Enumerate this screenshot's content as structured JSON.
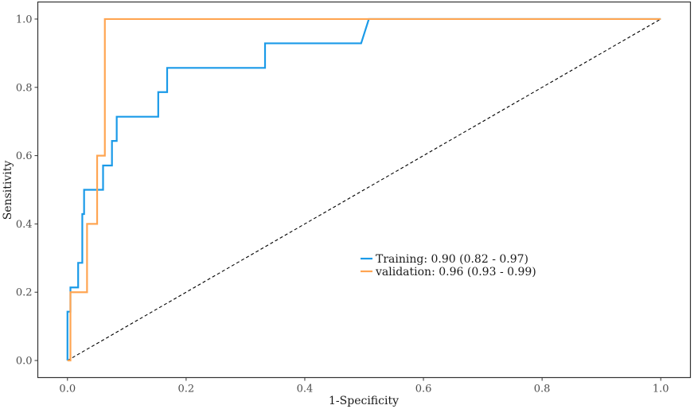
{
  "chart_data": {
    "type": "line",
    "title": "",
    "xlabel": "1-Specificity",
    "ylabel": "Sensitivity",
    "xlim": [
      -0.05,
      1.05
    ],
    "ylim": [
      -0.05,
      1.05
    ],
    "xticks": [
      0.0,
      0.2,
      0.4,
      0.6,
      0.8,
      1.0
    ],
    "xtick_labels": [
      "0.0",
      "0.2",
      "0.4",
      "0.6",
      "0.8",
      "1.0"
    ],
    "yticks": [
      0.0,
      0.2,
      0.4,
      0.6,
      0.8,
      1.0
    ],
    "ytick_labels": [
      "0.0",
      "0.2",
      "0.4",
      "0.6",
      "0.8",
      "1.0"
    ],
    "grid": false,
    "legend_position": "right-center",
    "reference_line": {
      "x": [
        0,
        1
      ],
      "y": [
        0,
        1
      ],
      "style": "dashed",
      "color": "#000000"
    },
    "series": [
      {
        "name": "Training: 0.90 (0.82 - 0.97)",
        "color": "#1a9ae8",
        "x": [
          0,
          0,
          0.005,
          0.005,
          0.018,
          0.018,
          0.025,
          0.025,
          0.028,
          0.028,
          0.06,
          0.06,
          0.065,
          0.065,
          0.075,
          0.075,
          0.078,
          0.078,
          0.083,
          0.083,
          0.153,
          0.153,
          0.163,
          0.163,
          0.168,
          0.168,
          0.333,
          0.333,
          0.495,
          0.508,
          1.0
        ],
        "y": [
          0,
          0.143,
          0.143,
          0.214,
          0.214,
          0.286,
          0.286,
          0.429,
          0.429,
          0.5,
          0.5,
          0.571,
          0.571,
          0.571,
          0.571,
          0.643,
          0.643,
          0.643,
          0.643,
          0.714,
          0.714,
          0.786,
          0.786,
          0.786,
          0.786,
          0.857,
          0.857,
          0.929,
          0.929,
          1.0,
          1.0
        ]
      },
      {
        "name": "validation: 0.96 (0.93 - 0.99)",
        "color": "#ffa552",
        "x": [
          0,
          0.005,
          0.005,
          0.033,
          0.033,
          0.05,
          0.05,
          0.058,
          0.058,
          0.063,
          0.063,
          1.0
        ],
        "y": [
          0,
          0,
          0.2,
          0.2,
          0.4,
          0.4,
          0.6,
          0.6,
          0.6,
          0.6,
          1.0,
          1.0
        ]
      }
    ]
  }
}
